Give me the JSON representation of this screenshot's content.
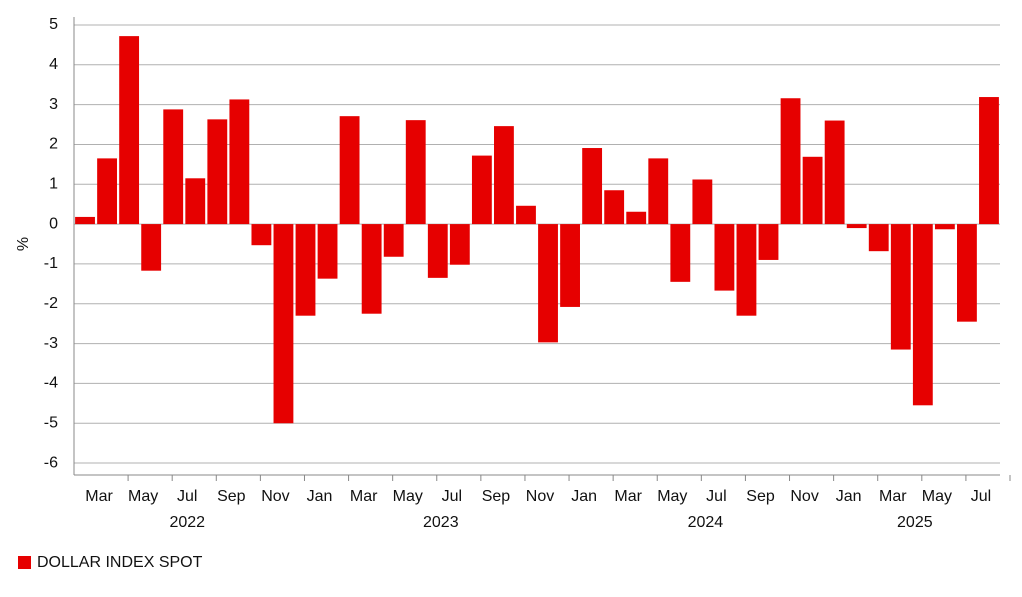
{
  "chart_data": {
    "type": "bar",
    "y_label": "%",
    "categories": [
      null,
      "Mar",
      null,
      "May",
      null,
      "Jul",
      null,
      "Sep",
      null,
      "Nov",
      null,
      "Jan",
      null,
      "Mar",
      null,
      "May",
      null,
      "Jul",
      null,
      "Sep",
      null,
      "Nov",
      null,
      "Jan",
      null,
      "Mar",
      null,
      "May",
      null,
      "Jul",
      null,
      "Sep",
      null,
      "Nov",
      null,
      "Jan",
      null,
      "Mar",
      null,
      "May",
      null,
      "Jul"
    ],
    "years": [
      "2022",
      "2023",
      "2024",
      "2025"
    ],
    "series": [
      {
        "name": "DOLLAR INDEX SPOT",
        "color": "#e60000",
        "values": [
          0.18,
          1.65,
          4.72,
          -1.17,
          2.88,
          1.15,
          2.63,
          3.13,
          -0.53,
          -5.0,
          -2.3,
          -1.37,
          2.71,
          -2.25,
          -0.82,
          2.61,
          -1.35,
          -1.02,
          1.72,
          2.46,
          0.46,
          -2.97,
          -2.08,
          1.91,
          0.85,
          0.31,
          1.65,
          -1.45,
          1.12,
          -1.67,
          -2.3,
          -0.9,
          3.16,
          1.69,
          2.6,
          -0.1,
          -0.68,
          -3.15,
          -4.55,
          -0.13,
          -2.45,
          3.19
        ]
      }
    ],
    "ylim": [
      -6.3,
      5.2
    ],
    "yticks": [
      -6,
      -5,
      -4,
      -3,
      -2,
      -1,
      0,
      1,
      2,
      3,
      4,
      5
    ],
    "grid": true
  }
}
